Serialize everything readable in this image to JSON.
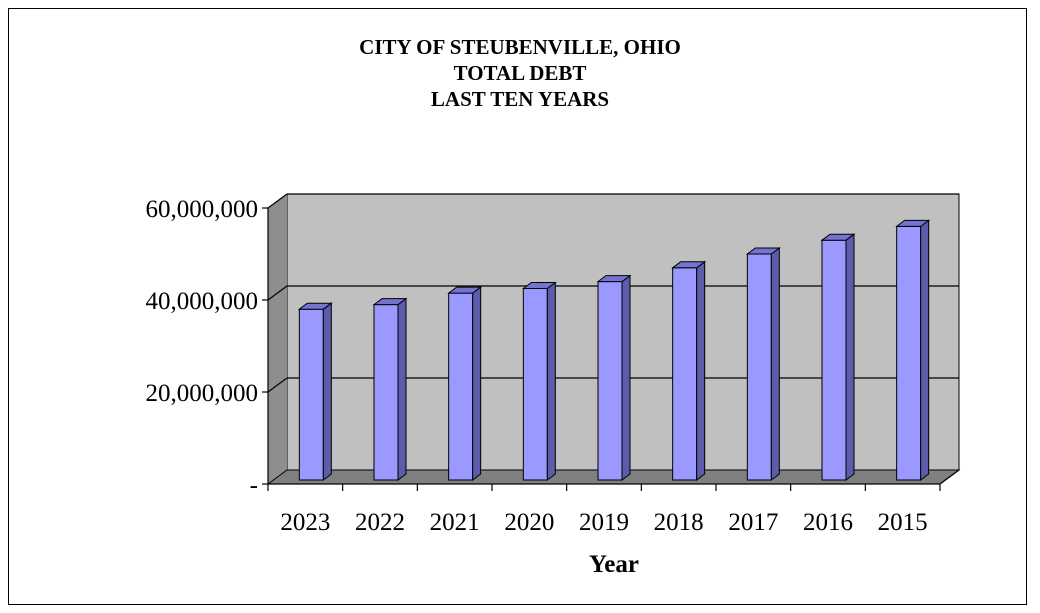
{
  "chart_data": {
    "type": "bar",
    "title": [
      "CITY OF STEUBENVILLE, OHIO",
      "TOTAL DEBT",
      "LAST TEN YEARS"
    ],
    "xlabel": "Year",
    "ylabel": "",
    "categories": [
      "2023",
      "2022",
      "2021",
      "2020",
      "2019",
      "2018",
      "2017",
      "2016",
      "2015"
    ],
    "values": [
      38000000,
      39000000,
      41500000,
      42500000,
      44000000,
      47000000,
      50000000,
      53000000,
      56000000
    ],
    "ylim": [
      0,
      60000000
    ],
    "yticks": [
      0,
      20000000,
      40000000,
      60000000
    ],
    "ytick_labels": [
      "-",
      "20,000,000",
      "40,000,000",
      "60,000,000"
    ],
    "grid": true,
    "legend": "none",
    "colors": {
      "bar_front": "#9999ff",
      "bar_side": "#5c5cab",
      "bar_top": "#7373d0",
      "wall": "#c0c0c0",
      "wall_side": "#8e8e8e",
      "floor": "#808080",
      "gridline": "#000000"
    }
  }
}
